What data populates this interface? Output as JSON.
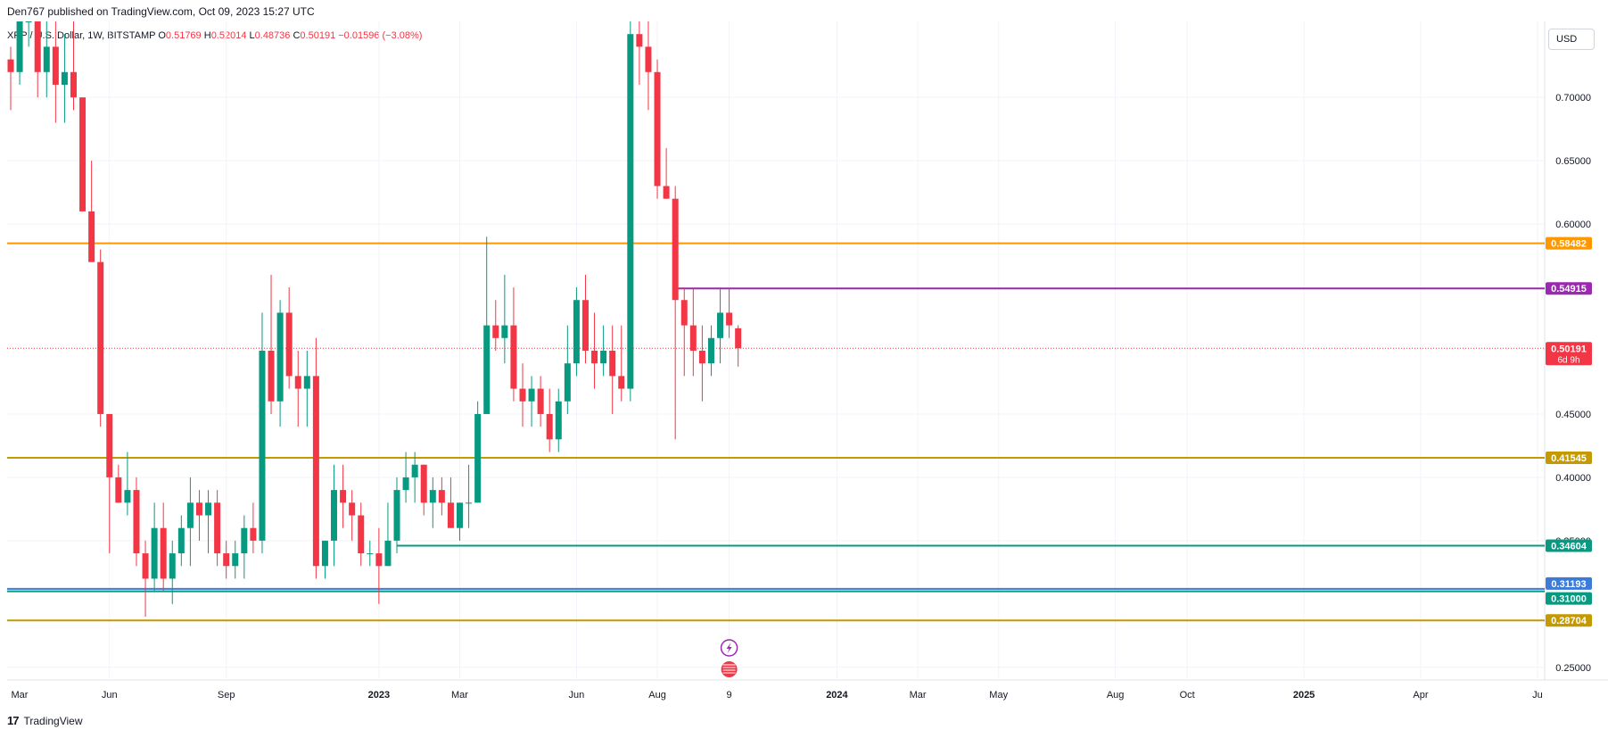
{
  "header": {
    "published": "Den767 published on TradingView.com, Oct 09, 2023 15:27 UTC"
  },
  "legend": {
    "symbol": "XRP / U.S. Dollar, 1W, BITSTAMP",
    "o_label": "O",
    "o": "0.51769",
    "h_label": "H",
    "h": "0.52014",
    "l_label": "L",
    "l": "0.48736",
    "c_label": "C",
    "c": "0.50191",
    "change": "−0.01596 (−3.08%)"
  },
  "currency": "USD",
  "footer": {
    "brand": "TradingView",
    "logo": "17"
  },
  "colors": {
    "up": "#089981",
    "down": "#f23645",
    "orange": "#ff9800",
    "gold": "#c49a00",
    "purple": "#9c27b0",
    "teal": "#089981",
    "blue": "#2962ff"
  },
  "chart_data": {
    "type": "candlestick",
    "title": "XRP / U.S. Dollar, 1W, BITSTAMP",
    "ylim": [
      0.24,
      0.76
    ],
    "y_ticks": [
      "0.70000",
      "0.65000",
      "0.60000",
      "0.45000",
      "0.40000",
      "0.35000",
      "0.25000"
    ],
    "y_tick_values": [
      0.7,
      0.65,
      0.6,
      0.45,
      0.4,
      0.35,
      0.25
    ],
    "x_ticks": [
      {
        "label": "Mar",
        "i": -2
      },
      {
        "label": "Jun",
        "i": 11
      },
      {
        "label": "Sep",
        "i": 24
      },
      {
        "label": "2023",
        "i": 41
      },
      {
        "label": "Mar",
        "i": 50
      },
      {
        "label": "Jun",
        "i": 63
      },
      {
        "label": "Aug",
        "i": 72
      },
      {
        "label": "9",
        "i": 80
      },
      {
        "label": "2024",
        "i": 92
      },
      {
        "label": "Mar",
        "i": 101
      },
      {
        "label": "May",
        "i": 110
      },
      {
        "label": "Aug",
        "i": 123
      },
      {
        "label": "Oct",
        "i": 131
      },
      {
        "label": "2025",
        "i": 144
      },
      {
        "label": "Apr",
        "i": 157
      },
      {
        "label": "Ju",
        "i": 170
      }
    ],
    "candles": [
      [
        0.73,
        0.74,
        0.69,
        0.72
      ],
      [
        0.72,
        0.77,
        0.71,
        0.76
      ],
      [
        0.76,
        0.78,
        0.74,
        0.77
      ],
      [
        0.77,
        0.77,
        0.7,
        0.72
      ],
      [
        0.72,
        0.8,
        0.7,
        0.74
      ],
      [
        0.74,
        0.78,
        0.68,
        0.71
      ],
      [
        0.71,
        0.75,
        0.68,
        0.72
      ],
      [
        0.72,
        0.76,
        0.69,
        0.7
      ],
      [
        0.7,
        0.7,
        0.61,
        0.61
      ],
      [
        0.61,
        0.65,
        0.57,
        0.57
      ],
      [
        0.57,
        0.58,
        0.44,
        0.45
      ],
      [
        0.45,
        0.45,
        0.34,
        0.4
      ],
      [
        0.4,
        0.41,
        0.38,
        0.38
      ],
      [
        0.38,
        0.42,
        0.37,
        0.39
      ],
      [
        0.39,
        0.4,
        0.33,
        0.34
      ],
      [
        0.34,
        0.35,
        0.29,
        0.32
      ],
      [
        0.32,
        0.38,
        0.31,
        0.36
      ],
      [
        0.36,
        0.38,
        0.31,
        0.32
      ],
      [
        0.32,
        0.35,
        0.3,
        0.34
      ],
      [
        0.34,
        0.37,
        0.33,
        0.36
      ],
      [
        0.36,
        0.4,
        0.33,
        0.38
      ],
      [
        0.38,
        0.39,
        0.35,
        0.37
      ],
      [
        0.37,
        0.39,
        0.34,
        0.38
      ],
      [
        0.38,
        0.39,
        0.33,
        0.34
      ],
      [
        0.34,
        0.35,
        0.32,
        0.33
      ],
      [
        0.33,
        0.35,
        0.32,
        0.34
      ],
      [
        0.34,
        0.37,
        0.32,
        0.36
      ],
      [
        0.36,
        0.38,
        0.34,
        0.35
      ],
      [
        0.35,
        0.53,
        0.34,
        0.5
      ],
      [
        0.5,
        0.56,
        0.45,
        0.46
      ],
      [
        0.46,
        0.54,
        0.44,
        0.53
      ],
      [
        0.53,
        0.55,
        0.47,
        0.48
      ],
      [
        0.48,
        0.5,
        0.44,
        0.47
      ],
      [
        0.47,
        0.5,
        0.44,
        0.48
      ],
      [
        0.48,
        0.51,
        0.32,
        0.33
      ],
      [
        0.33,
        0.35,
        0.32,
        0.35
      ],
      [
        0.35,
        0.41,
        0.33,
        0.39
      ],
      [
        0.39,
        0.41,
        0.36,
        0.38
      ],
      [
        0.38,
        0.39,
        0.35,
        0.37
      ],
      [
        0.37,
        0.38,
        0.33,
        0.34
      ],
      [
        0.34,
        0.35,
        0.33,
        0.34
      ],
      [
        0.34,
        0.36,
        0.3,
        0.33
      ],
      [
        0.33,
        0.38,
        0.33,
        0.35
      ],
      [
        0.35,
        0.4,
        0.34,
        0.39
      ],
      [
        0.39,
        0.42,
        0.38,
        0.4
      ],
      [
        0.4,
        0.42,
        0.38,
        0.41
      ],
      [
        0.41,
        0.41,
        0.37,
        0.38
      ],
      [
        0.38,
        0.4,
        0.36,
        0.39
      ],
      [
        0.39,
        0.4,
        0.37,
        0.38
      ],
      [
        0.38,
        0.4,
        0.36,
        0.36
      ],
      [
        0.36,
        0.38,
        0.35,
        0.38
      ],
      [
        0.38,
        0.41,
        0.36,
        0.38
      ],
      [
        0.38,
        0.46,
        0.38,
        0.45
      ],
      [
        0.45,
        0.59,
        0.45,
        0.52
      ],
      [
        0.52,
        0.54,
        0.5,
        0.51
      ],
      [
        0.51,
        0.56,
        0.49,
        0.52
      ],
      [
        0.52,
        0.55,
        0.46,
        0.47
      ],
      [
        0.47,
        0.49,
        0.44,
        0.46
      ],
      [
        0.46,
        0.48,
        0.44,
        0.47
      ],
      [
        0.47,
        0.48,
        0.44,
        0.45
      ],
      [
        0.45,
        0.47,
        0.42,
        0.43
      ],
      [
        0.43,
        0.47,
        0.42,
        0.46
      ],
      [
        0.46,
        0.52,
        0.45,
        0.49
      ],
      [
        0.49,
        0.55,
        0.48,
        0.54
      ],
      [
        0.54,
        0.56,
        0.49,
        0.5
      ],
      [
        0.5,
        0.53,
        0.47,
        0.49
      ],
      [
        0.49,
        0.52,
        0.48,
        0.5
      ],
      [
        0.5,
        0.52,
        0.45,
        0.48
      ],
      [
        0.48,
        0.52,
        0.46,
        0.47
      ],
      [
        0.47,
        0.78,
        0.46,
        0.75
      ],
      [
        0.75,
        0.78,
        0.71,
        0.74
      ],
      [
        0.74,
        0.76,
        0.69,
        0.72
      ],
      [
        0.72,
        0.73,
        0.62,
        0.63
      ],
      [
        0.63,
        0.66,
        0.62,
        0.62
      ],
      [
        0.62,
        0.63,
        0.43,
        0.54
      ],
      [
        0.54,
        0.55,
        0.48,
        0.52
      ],
      [
        0.52,
        0.55,
        0.48,
        0.5
      ],
      [
        0.5,
        0.52,
        0.46,
        0.49
      ],
      [
        0.49,
        0.52,
        0.48,
        0.51
      ],
      [
        0.51,
        0.55,
        0.49,
        0.53
      ],
      [
        0.53,
        0.55,
        0.51,
        0.52
      ],
      [
        0.5177,
        0.5201,
        0.4874,
        0.5019
      ]
    ],
    "levels": [
      {
        "value": 0.58482,
        "label": "0.58482",
        "color": "#ff9800"
      },
      {
        "value": 0.54915,
        "label": "0.54915",
        "color": "#9c27b0"
      },
      {
        "value": 0.41545,
        "label": "0.41545",
        "color": "#c49a00"
      },
      {
        "value": 0.34604,
        "label": "0.34604",
        "color": "#089981"
      },
      {
        "value": 0.31193,
        "label": "0.31193",
        "color": "#3d7bd9"
      },
      {
        "value": 0.31,
        "label": "0.31000",
        "color": "#089981"
      },
      {
        "value": 0.28704,
        "label": "0.28704",
        "color": "#c49a00"
      }
    ],
    "current_price": {
      "value": 0.50191,
      "label": "0.50191",
      "countdown": "6d 9h",
      "color": "#f23645"
    }
  }
}
